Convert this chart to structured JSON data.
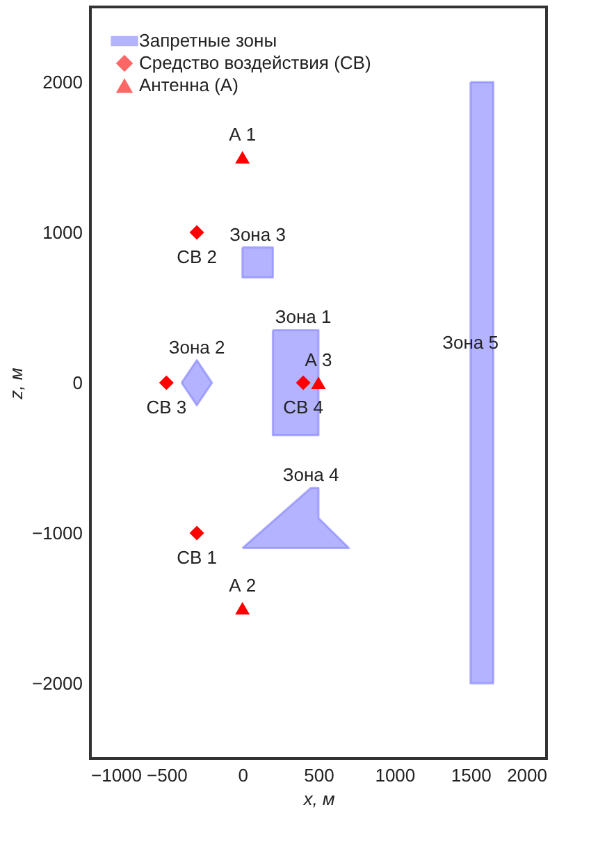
{
  "chart_data": {
    "type": "scatter",
    "xlabel": "x, м",
    "ylabel": "z, м",
    "xlim": [
      -1000,
      2000
    ],
    "ylim": [
      -2500,
      2500
    ],
    "xticks": [
      -1000,
      -500,
      0,
      500,
      1000,
      1500,
      2000
    ],
    "yticks": [
      -2000,
      -1000,
      0,
      1000,
      2000
    ],
    "grid": false,
    "legend": "top left",
    "series": [
      {
        "name": "Запретные зоны",
        "type": "area",
        "color": "#8080ff",
        "x": [
          200,
          500,
          500,
          200,
          200
        ],
        "values": [
          350,
          350,
          -350,
          -350,
          350
        ]
      },
      {
        "type": "area",
        "color": "#8080ff",
        "x": [
          -400,
          -300,
          -200,
          -300,
          -400
        ],
        "values": [
          0,
          150,
          0,
          -150,
          0
        ]
      },
      {
        "type": "area",
        "color": "#8080ff",
        "x": [
          0,
          200,
          200,
          0,
          0
        ],
        "values": [
          900,
          900,
          700,
          700,
          900
        ]
      },
      {
        "type": "area",
        "color": "#8080ff",
        "x": [
          0,
          450,
          500,
          500,
          700,
          0
        ],
        "values": [
          -1100,
          -700,
          -700,
          -900,
          -1100,
          -1100
        ]
      },
      {
        "type": "area",
        "color": "#8080ff",
        "x": [
          1500,
          1650,
          1650,
          1500,
          1500
        ],
        "values": [
          2000,
          2000,
          -2000,
          -2000,
          2000
        ]
      },
      {
        "name": "Средство воздействия (СВ)",
        "type": "scatter",
        "marker": "diamond",
        "color": "#ff0000",
        "x": [
          -300,
          -300,
          -500,
          400
        ],
        "values": [
          -1000,
          1000,
          0,
          0
        ],
        "value_labels": [
          "СВ 1",
          "СВ 2",
          "СВ 3",
          "СВ 4"
        ]
      },
      {
        "name": "Антенна (А)",
        "type": "scatter",
        "marker": "triangle",
        "color": "#ff0000",
        "x": [
          0,
          0,
          500
        ],
        "values": [
          1500,
          -1500,
          0
        ],
        "value_labels": [
          "А 1",
          "А 2",
          "А 3"
        ]
      }
    ],
    "annotations": [
      {
        "text": "Зона 1",
        "x": 400,
        "y": 350
      },
      {
        "text": "Зона 2",
        "x": -300,
        "y": 150
      },
      {
        "text": "Зона 3",
        "x": 100,
        "y": 900
      },
      {
        "text": "Зона 4",
        "x": 450,
        "y": -700
      },
      {
        "text": "Зона 5",
        "x": 1500,
        "y": 180
      }
    ]
  }
}
